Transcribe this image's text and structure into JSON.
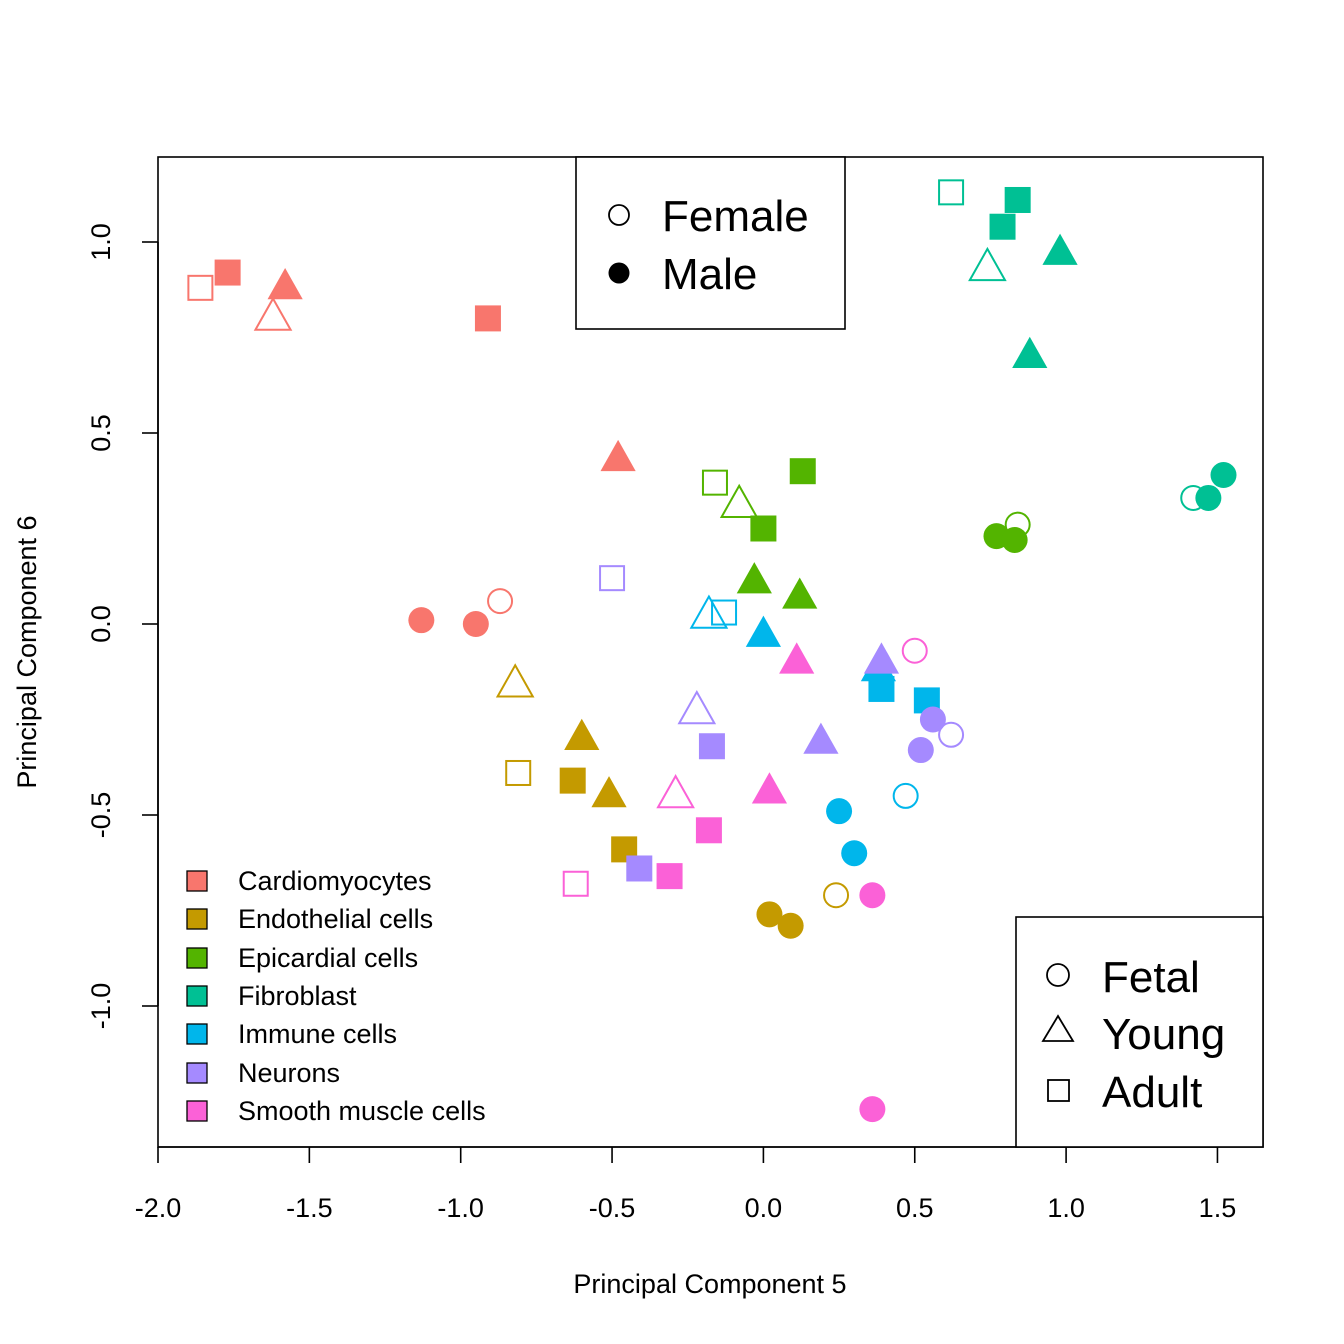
{
  "chart_data": {
    "type": "scatter",
    "xlabel": "Principal Component 5",
    "ylabel": "Principal Component 6",
    "xlim": [
      -2.0,
      1.65
    ],
    "ylim": [
      -1.37,
      1.22
    ],
    "x_ticks": [
      -2.0,
      -1.5,
      -1.0,
      -0.5,
      0.0,
      0.5,
      1.0,
      1.5
    ],
    "x_tick_labels": [
      "-2.0",
      "-1.5",
      "-1.0",
      "-0.5",
      "0.0",
      "0.5",
      "1.0",
      "1.5"
    ],
    "y_ticks": [
      -1.0,
      -0.5,
      0.0,
      0.5,
      1.0
    ],
    "y_tick_labels": [
      "-1.0",
      "-0.5",
      "0.0",
      "0.5",
      "1.0"
    ],
    "grid": false,
    "legend_sex": {
      "placement": "top-center",
      "items": [
        {
          "label": "Female",
          "symbol": "open-circle"
        },
        {
          "label": "Male",
          "symbol": "filled-circle"
        }
      ]
    },
    "legend_stage": {
      "placement": "bottom-right",
      "items": [
        {
          "label": "Fetal",
          "symbol": "circle"
        },
        {
          "label": "Young",
          "symbol": "triangle"
        },
        {
          "label": "Adult",
          "symbol": "square"
        }
      ]
    },
    "legend_cell_type": {
      "placement": "bottom-left",
      "items": [
        {
          "label": "Cardiomyocytes",
          "color": "#F8766D"
        },
        {
          "label": "Endothelial cells",
          "color": "#C49A00"
        },
        {
          "label": "Epicardial cells",
          "color": "#53B400"
        },
        {
          "label": "Fibroblast",
          "color": "#00C094"
        },
        {
          "label": "Immune cells",
          "color": "#00B6EB"
        },
        {
          "label": "Neurons",
          "color": "#A58AFF"
        },
        {
          "label": "Smooth muscle cells",
          "color": "#FB61D7"
        }
      ]
    },
    "series": [
      {
        "cell_type": "Cardiomyocytes",
        "color": "#F8766D",
        "points": [
          {
            "x": -1.86,
            "y": 0.88,
            "shape": "square",
            "filled": false
          },
          {
            "x": -1.77,
            "y": 0.92,
            "shape": "square",
            "filled": true
          },
          {
            "x": -1.62,
            "y": 0.81,
            "shape": "triangle",
            "filled": false
          },
          {
            "x": -1.58,
            "y": 0.89,
            "shape": "triangle",
            "filled": true
          },
          {
            "x": -0.91,
            "y": 0.8,
            "shape": "square",
            "filled": true
          },
          {
            "x": -0.48,
            "y": 0.44,
            "shape": "triangle",
            "filled": true
          },
          {
            "x": -0.87,
            "y": 0.06,
            "shape": "circle",
            "filled": false
          },
          {
            "x": -1.13,
            "y": 0.01,
            "shape": "circle",
            "filled": true
          },
          {
            "x": -0.95,
            "y": 0.0,
            "shape": "circle",
            "filled": true
          }
        ]
      },
      {
        "cell_type": "Endothelial cells",
        "color": "#C49A00",
        "points": [
          {
            "x": -0.82,
            "y": -0.15,
            "shape": "triangle",
            "filled": false
          },
          {
            "x": -0.6,
            "y": -0.29,
            "shape": "triangle",
            "filled": true
          },
          {
            "x": -0.81,
            "y": -0.39,
            "shape": "square",
            "filled": false
          },
          {
            "x": -0.63,
            "y": -0.41,
            "shape": "square",
            "filled": true
          },
          {
            "x": -0.51,
            "y": -0.44,
            "shape": "triangle",
            "filled": true
          },
          {
            "x": -0.46,
            "y": -0.59,
            "shape": "square",
            "filled": true
          },
          {
            "x": 0.24,
            "y": -0.71,
            "shape": "circle",
            "filled": false
          },
          {
            "x": 0.02,
            "y": -0.76,
            "shape": "circle",
            "filled": true
          },
          {
            "x": 0.09,
            "y": -0.79,
            "shape": "circle",
            "filled": true
          }
        ]
      },
      {
        "cell_type": "Epicardial cells",
        "color": "#53B400",
        "points": [
          {
            "x": 0.13,
            "y": 0.4,
            "shape": "square",
            "filled": true
          },
          {
            "x": -0.16,
            "y": 0.37,
            "shape": "square",
            "filled": false
          },
          {
            "x": -0.08,
            "y": 0.32,
            "shape": "triangle",
            "filled": false
          },
          {
            "x": 0.0,
            "y": 0.25,
            "shape": "square",
            "filled": true
          },
          {
            "x": -0.03,
            "y": 0.12,
            "shape": "triangle",
            "filled": true
          },
          {
            "x": 0.12,
            "y": 0.08,
            "shape": "triangle",
            "filled": true
          },
          {
            "x": 0.84,
            "y": 0.26,
            "shape": "circle",
            "filled": false
          },
          {
            "x": 0.77,
            "y": 0.23,
            "shape": "circle",
            "filled": true
          },
          {
            "x": 0.83,
            "y": 0.22,
            "shape": "circle",
            "filled": true
          }
        ]
      },
      {
        "cell_type": "Fibroblast",
        "color": "#00C094",
        "points": [
          {
            "x": 0.62,
            "y": 1.13,
            "shape": "square",
            "filled": false
          },
          {
            "x": 0.84,
            "y": 1.11,
            "shape": "square",
            "filled": true
          },
          {
            "x": 0.79,
            "y": 1.04,
            "shape": "square",
            "filled": true
          },
          {
            "x": 0.74,
            "y": 0.94,
            "shape": "triangle",
            "filled": false
          },
          {
            "x": 0.98,
            "y": 0.98,
            "shape": "triangle",
            "filled": true
          },
          {
            "x": 0.88,
            "y": 0.71,
            "shape": "triangle",
            "filled": true
          },
          {
            "x": 1.42,
            "y": 0.33,
            "shape": "circle",
            "filled": false
          },
          {
            "x": 1.47,
            "y": 0.33,
            "shape": "circle",
            "filled": true
          },
          {
            "x": 1.52,
            "y": 0.39,
            "shape": "circle",
            "filled": true
          }
        ]
      },
      {
        "cell_type": "Immune cells",
        "color": "#00B6EB",
        "points": [
          {
            "x": -0.18,
            "y": 0.03,
            "shape": "triangle",
            "filled": false
          },
          {
            "x": -0.13,
            "y": 0.03,
            "shape": "square",
            "filled": false
          },
          {
            "x": 0.0,
            "y": -0.02,
            "shape": "triangle",
            "filled": true
          },
          {
            "x": 0.38,
            "y": -0.11,
            "shape": "triangle",
            "filled": true
          },
          {
            "x": 0.39,
            "y": -0.17,
            "shape": "square",
            "filled": true
          },
          {
            "x": 0.54,
            "y": -0.2,
            "shape": "square",
            "filled": true
          },
          {
            "x": 0.47,
            "y": -0.45,
            "shape": "circle",
            "filled": false
          },
          {
            "x": 0.25,
            "y": -0.49,
            "shape": "circle",
            "filled": true
          },
          {
            "x": 0.3,
            "y": -0.6,
            "shape": "circle",
            "filled": true
          }
        ]
      },
      {
        "cell_type": "Neurons",
        "color": "#A58AFF",
        "points": [
          {
            "x": -0.5,
            "y": 0.12,
            "shape": "square",
            "filled": false
          },
          {
            "x": 0.39,
            "y": -0.09,
            "shape": "triangle",
            "filled": true
          },
          {
            "x": -0.22,
            "y": -0.22,
            "shape": "triangle",
            "filled": false
          },
          {
            "x": -0.17,
            "y": -0.32,
            "shape": "square",
            "filled": true
          },
          {
            "x": 0.19,
            "y": -0.3,
            "shape": "triangle",
            "filled": true
          },
          {
            "x": -0.41,
            "y": -0.64,
            "shape": "square",
            "filled": true
          },
          {
            "x": 0.62,
            "y": -0.29,
            "shape": "circle",
            "filled": false
          },
          {
            "x": 0.56,
            "y": -0.25,
            "shape": "circle",
            "filled": true
          },
          {
            "x": 0.52,
            "y": -0.33,
            "shape": "circle",
            "filled": true
          }
        ]
      },
      {
        "cell_type": "Smooth muscle cells",
        "color": "#FB61D7",
        "points": [
          {
            "x": 0.11,
            "y": -0.09,
            "shape": "triangle",
            "filled": true
          },
          {
            "x": -0.29,
            "y": -0.44,
            "shape": "triangle",
            "filled": false
          },
          {
            "x": 0.02,
            "y": -0.43,
            "shape": "triangle",
            "filled": true
          },
          {
            "x": -0.18,
            "y": -0.54,
            "shape": "square",
            "filled": true
          },
          {
            "x": -0.31,
            "y": -0.66,
            "shape": "square",
            "filled": true
          },
          {
            "x": -0.62,
            "y": -0.68,
            "shape": "square",
            "filled": false
          },
          {
            "x": 0.5,
            "y": -0.07,
            "shape": "circle",
            "filled": false
          },
          {
            "x": 0.36,
            "y": -0.71,
            "shape": "circle",
            "filled": true
          },
          {
            "x": 0.36,
            "y": -1.27,
            "shape": "circle",
            "filled": true
          }
        ]
      }
    ]
  }
}
